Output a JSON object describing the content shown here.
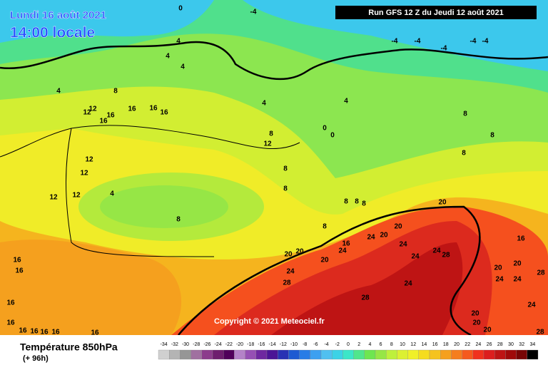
{
  "header": {
    "date": "Lundi 16 août 2021",
    "time": "14:00 locale",
    "run": "Run GFS 12 Z du Jeudi 12 août 2021"
  },
  "copyright": "Copyright © 2021 Meteociel.fr",
  "legend": {
    "title": "Température 850hPa",
    "subtitle": "(+ 96h)",
    "ticks": [
      -34,
      -32,
      -30,
      -28,
      -26,
      -24,
      -22,
      -20,
      -18,
      -16,
      -14,
      -12,
      -10,
      -8,
      -6,
      -4,
      -2,
      0,
      2,
      4,
      6,
      8,
      10,
      12,
      14,
      16,
      18,
      20,
      22,
      24,
      26,
      28,
      30,
      32,
      34
    ],
    "colors": [
      "#d0d0d0",
      "#b4b4b4",
      "#969696",
      "#a070a0",
      "#8c3c8c",
      "#6e1e6e",
      "#50005a",
      "#b482c8",
      "#9650b4",
      "#6e28a0",
      "#4b1496",
      "#2832b4",
      "#1e5ad2",
      "#287ce6",
      "#3ca0f0",
      "#50c0f0",
      "#3cd2e6",
      "#3ce6c8",
      "#50e68c",
      "#6ee650",
      "#96e646",
      "#bef03c",
      "#dcf032",
      "#f0f028",
      "#f5dc1e",
      "#f5c31e",
      "#f5a01e",
      "#f57d1e",
      "#f55a1e",
      "#f0321e",
      "#dc1e1e",
      "#be1414",
      "#a00a0a",
      "#780505",
      "#000000"
    ]
  },
  "contour_labels": [
    0,
    -4,
    4,
    4,
    4,
    4,
    4,
    4,
    -4,
    -4,
    -4,
    -4,
    -4,
    0,
    0,
    8,
    12,
    12,
    16,
    16,
    16,
    16,
    16,
    8,
    12,
    8,
    8,
    8,
    8,
    8,
    8,
    8,
    8,
    12,
    12,
    12,
    12,
    4,
    8,
    8,
    16,
    24,
    20,
    20,
    24,
    24,
    28,
    24,
    20,
    20,
    20,
    24,
    24,
    28,
    28,
    24,
    20,
    16,
    20,
    20,
    24,
    24,
    28,
    24,
    20,
    20,
    20,
    28,
    16,
    16,
    16,
    16,
    16,
    16,
    16,
    16,
    16
  ]
}
